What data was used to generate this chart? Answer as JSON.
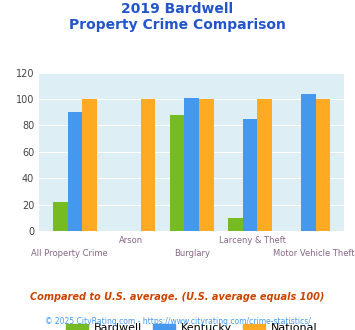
{
  "title_line1": "2019 Bardwell",
  "title_line2": "Property Crime Comparison",
  "categories": [
    "All Property Crime",
    "Arson",
    "Burglary",
    "Larceny & Theft",
    "Motor Vehicle Theft"
  ],
  "bardwell": [
    22,
    0,
    88,
    10,
    0
  ],
  "kentucky": [
    90,
    0,
    101,
    85,
    104
  ],
  "national": [
    100,
    100,
    100,
    100,
    100
  ],
  "bar_color_bardwell": "#77bb22",
  "bar_color_kentucky": "#4499ee",
  "bar_color_national": "#ffaa22",
  "ylim": [
    0,
    120
  ],
  "yticks": [
    0,
    20,
    40,
    60,
    80,
    100,
    120
  ],
  "legend_labels": [
    "Bardwell",
    "Kentucky",
    "National"
  ],
  "footnote1": "Compared to U.S. average. (U.S. average equals 100)",
  "footnote2": "© 2025 CityRating.com - https://www.cityrating.com/crime-statistics/",
  "title_color": "#2255cc",
  "footnote1_color": "#cc4400",
  "footnote2_color": "#4499ee",
  "xticklabel_color": "#886688",
  "background_plot": "#ddeef5",
  "background_fig": "#ffffff"
}
